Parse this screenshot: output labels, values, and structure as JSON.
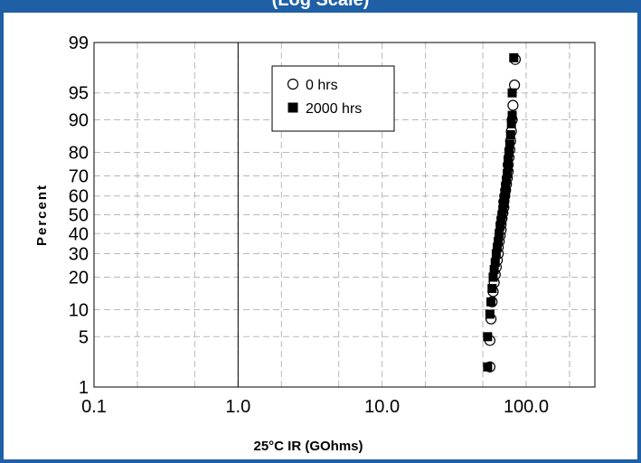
{
  "header": {
    "title_fragment": "(Log Scale)"
  },
  "chart_data": {
    "type": "scatter",
    "xscale": "log",
    "yscale": "probability",
    "xlim": [
      0.1,
      300
    ],
    "ylim": [
      1,
      99
    ],
    "xlabel": "25°C IR (GOhms)",
    "ylabel": "Percent",
    "x_ticks": [
      0.1,
      1.0,
      10.0,
      100.0
    ],
    "x_tick_labels": [
      "0.1",
      "1.0",
      "10.0",
      "100.0"
    ],
    "y_ticks": [
      1,
      5,
      10,
      20,
      30,
      40,
      50,
      60,
      70,
      80,
      90,
      95,
      99
    ],
    "y_tick_labels": [
      "1",
      "5",
      "10",
      "20",
      "30",
      "40",
      "50",
      "60",
      "70",
      "80",
      "90",
      "95",
      "99"
    ],
    "grid": true,
    "legend_position": "top-center",
    "series": [
      {
        "name": "0 hrs",
        "marker": "open-circle",
        "points": [
          [
            56,
            2.0
          ],
          [
            56,
            4.5
          ],
          [
            57,
            8
          ],
          [
            58,
            12
          ],
          [
            59,
            15
          ],
          [
            60,
            18
          ],
          [
            61,
            21
          ],
          [
            62,
            24
          ],
          [
            63,
            27
          ],
          [
            64,
            30
          ],
          [
            64,
            33
          ],
          [
            65,
            36
          ],
          [
            66,
            39
          ],
          [
            67,
            42
          ],
          [
            67,
            45
          ],
          [
            68,
            48
          ],
          [
            69,
            51
          ],
          [
            70,
            54
          ],
          [
            70,
            57
          ],
          [
            71,
            60
          ],
          [
            72,
            63
          ],
          [
            73,
            66
          ],
          [
            74,
            69
          ],
          [
            75,
            72
          ],
          [
            75,
            75
          ],
          [
            76,
            78
          ],
          [
            77,
            81
          ],
          [
            78,
            84
          ],
          [
            79,
            87
          ],
          [
            80,
            90
          ],
          [
            81,
            93
          ],
          [
            83,
            96
          ],
          [
            84,
            98.2
          ]
        ]
      },
      {
        "name": "2000 hrs",
        "marker": "filled-square",
        "points": [
          [
            54,
            2.0
          ],
          [
            54,
            5
          ],
          [
            56,
            9
          ],
          [
            57,
            12
          ],
          [
            58,
            16
          ],
          [
            59,
            20
          ],
          [
            60,
            23
          ],
          [
            61,
            26
          ],
          [
            62,
            30
          ],
          [
            63,
            33
          ],
          [
            64,
            36
          ],
          [
            65,
            40
          ],
          [
            66,
            44
          ],
          [
            67,
            47
          ],
          [
            68,
            50
          ],
          [
            69,
            53
          ],
          [
            70,
            56
          ],
          [
            71,
            59
          ],
          [
            72,
            62
          ],
          [
            72,
            65
          ],
          [
            73,
            68
          ],
          [
            74,
            71
          ],
          [
            75,
            74
          ],
          [
            75,
            77
          ],
          [
            76,
            80
          ],
          [
            77,
            83
          ],
          [
            78,
            86
          ],
          [
            79,
            89
          ],
          [
            80,
            91
          ],
          [
            80,
            95
          ],
          [
            82,
            98.3
          ]
        ]
      }
    ]
  }
}
